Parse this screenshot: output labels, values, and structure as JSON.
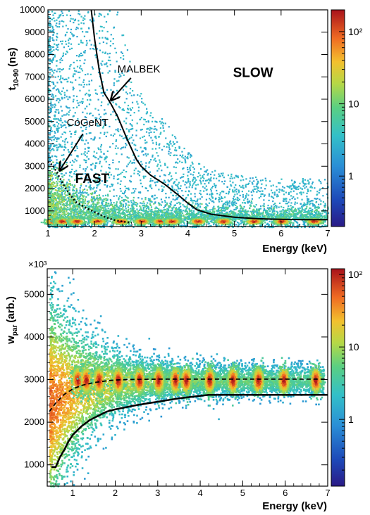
{
  "chart_data": [
    {
      "type": "heatmap",
      "xlabel": "Energy (keV)",
      "ylabel": "t",
      "ylabel_sub": "10-90",
      "ylabel_unit": "(ns)",
      "xlim": [
        1,
        7
      ],
      "ylim": [
        300,
        10000
      ],
      "x_ticks": [
        1,
        2,
        3,
        4,
        5,
        6,
        7
      ],
      "y_ticks": [
        1000,
        2000,
        3000,
        4000,
        5000,
        6000,
        7000,
        8000,
        9000,
        10000
      ],
      "colorbar": {
        "scale": "log",
        "range": [
          0.2,
          200
        ],
        "tick_values": [
          1,
          10,
          100
        ],
        "tick_labels": [
          "1",
          "10",
          "10²"
        ]
      },
      "annotations": [
        {
          "text": "MALBEK",
          "x": 2.95,
          "y": 7200
        },
        {
          "text": "CoGeNT",
          "x": 1.85,
          "y": 4800
        },
        {
          "text": "SLOW",
          "x": 5.4,
          "y": 7000
        },
        {
          "text": "FAST",
          "x": 1.95,
          "y": 2250
        }
      ],
      "series": [
        {
          "name": "MALBEK",
          "style": "solid",
          "x": [
            1.93,
            2.0,
            2.1,
            2.2,
            2.35,
            2.5,
            2.7,
            2.9,
            3.0,
            3.2,
            3.5,
            3.8,
            4.0,
            4.2,
            4.5,
            5.0,
            5.5,
            6.0,
            6.5,
            7.0
          ],
          "y": [
            10000,
            8700,
            7300,
            6300,
            5800,
            5200,
            4200,
            3300,
            3000,
            2600,
            2200,
            1700,
            1350,
            1050,
            850,
            720,
            650,
            620,
            610,
            610
          ]
        },
        {
          "name": "CoGeNT",
          "style": "dotted",
          "x": [
            1.0,
            1.1,
            1.2,
            1.3,
            1.4,
            1.5,
            1.6,
            1.8,
            2.0,
            2.2,
            2.4,
            2.6,
            2.8
          ],
          "y": [
            3200,
            3050,
            2700,
            2300,
            1950,
            1650,
            1400,
            1150,
            950,
            750,
            600,
            520,
            470
          ]
        }
      ],
      "peaks_keV": [
        1.1,
        1.3,
        1.6,
        2.05,
        2.55,
        3.0,
        3.4,
        3.65,
        4.2,
        4.75,
        5.4,
        6.0,
        6.7
      ]
    },
    {
      "type": "heatmap",
      "xlabel": "Energy (keV)",
      "ylabel": "w",
      "ylabel_sub": "par",
      "ylabel_unit": "(arb.)",
      "y_multiplier": "×10³",
      "xlim": [
        0.4,
        7
      ],
      "ylim": [
        500,
        5600
      ],
      "x_ticks": [
        1,
        2,
        3,
        4,
        5,
        6,
        7
      ],
      "y_ticks": [
        1000,
        2000,
        3000,
        4000,
        5000
      ],
      "colorbar": {
        "scale": "log",
        "range": [
          0.12,
          120
        ],
        "tick_values": [
          1,
          10,
          100
        ],
        "tick_labels": [
          "1",
          "10",
          "10²"
        ]
      },
      "series": [
        {
          "name": "solid",
          "style": "solid",
          "x": [
            0.5,
            0.6,
            0.7,
            0.8,
            0.9,
            1.0,
            1.2,
            1.4,
            1.6,
            1.8,
            2.0,
            2.5,
            3.0,
            3.5,
            4.0,
            4.2,
            5.0,
            6.0,
            7.0
          ],
          "y": [
            950,
            950,
            1180,
            1350,
            1550,
            1700,
            1900,
            2050,
            2150,
            2250,
            2300,
            2400,
            2480,
            2560,
            2620,
            2640,
            2640,
            2640,
            2640
          ]
        },
        {
          "name": "dashed",
          "style": "dashed",
          "x": [
            0.45,
            0.6,
            0.8,
            1.0,
            1.2,
            1.5,
            1.8,
            2.0,
            2.5,
            3.0,
            4.0,
            5.0,
            6.0,
            7.0
          ],
          "y": [
            2250,
            2450,
            2650,
            2780,
            2860,
            2930,
            2970,
            2990,
            3005,
            3010,
            3010,
            3010,
            3010,
            3010
          ]
        }
      ],
      "peaks_keV": [
        1.1,
        1.3,
        1.6,
        2.05,
        2.55,
        3.0,
        3.4,
        3.65,
        4.2,
        4.75,
        5.35,
        5.95,
        6.7
      ]
    }
  ]
}
